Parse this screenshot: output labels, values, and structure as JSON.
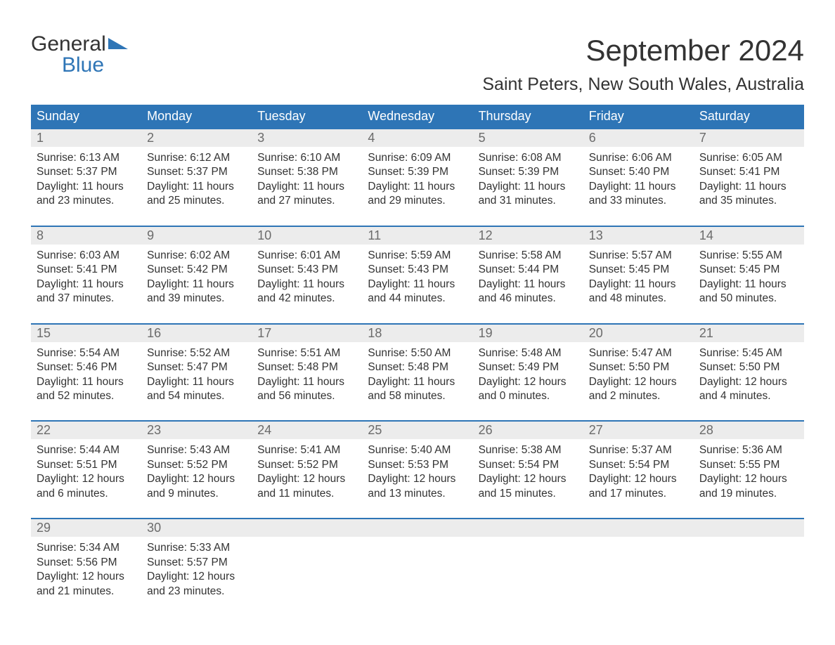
{
  "brand": {
    "line1": "General",
    "line2": "Blue",
    "text_color": "#333333",
    "accent_color": "#2e75b6"
  },
  "header": {
    "title": "September 2024",
    "location": "Saint Peters, New South Wales, Australia"
  },
  "calendar": {
    "type": "table",
    "columns": [
      "Sunday",
      "Monday",
      "Tuesday",
      "Wednesday",
      "Thursday",
      "Friday",
      "Saturday"
    ],
    "header_bg": "#2e75b6",
    "header_fg": "#ffffff",
    "row_accent": "#2e75b6",
    "daynum_bg": "#ececec",
    "background_color": "#ffffff",
    "text_color": "#333333",
    "daynum_color": "#6b6b6b",
    "body_fontsize": 15.5,
    "header_fontsize": 18,
    "weeks": [
      [
        {
          "n": "1",
          "sunrise": "6:13 AM",
          "sunset": "5:37 PM",
          "dl": "11 hours and 23 minutes."
        },
        {
          "n": "2",
          "sunrise": "6:12 AM",
          "sunset": "5:37 PM",
          "dl": "11 hours and 25 minutes."
        },
        {
          "n": "3",
          "sunrise": "6:10 AM",
          "sunset": "5:38 PM",
          "dl": "11 hours and 27 minutes."
        },
        {
          "n": "4",
          "sunrise": "6:09 AM",
          "sunset": "5:39 PM",
          "dl": "11 hours and 29 minutes."
        },
        {
          "n": "5",
          "sunrise": "6:08 AM",
          "sunset": "5:39 PM",
          "dl": "11 hours and 31 minutes."
        },
        {
          "n": "6",
          "sunrise": "6:06 AM",
          "sunset": "5:40 PM",
          "dl": "11 hours and 33 minutes."
        },
        {
          "n": "7",
          "sunrise": "6:05 AM",
          "sunset": "5:41 PM",
          "dl": "11 hours and 35 minutes."
        }
      ],
      [
        {
          "n": "8",
          "sunrise": "6:03 AM",
          "sunset": "5:41 PM",
          "dl": "11 hours and 37 minutes."
        },
        {
          "n": "9",
          "sunrise": "6:02 AM",
          "sunset": "5:42 PM",
          "dl": "11 hours and 39 minutes."
        },
        {
          "n": "10",
          "sunrise": "6:01 AM",
          "sunset": "5:43 PM",
          "dl": "11 hours and 42 minutes."
        },
        {
          "n": "11",
          "sunrise": "5:59 AM",
          "sunset": "5:43 PM",
          "dl": "11 hours and 44 minutes."
        },
        {
          "n": "12",
          "sunrise": "5:58 AM",
          "sunset": "5:44 PM",
          "dl": "11 hours and 46 minutes."
        },
        {
          "n": "13",
          "sunrise": "5:57 AM",
          "sunset": "5:45 PM",
          "dl": "11 hours and 48 minutes."
        },
        {
          "n": "14",
          "sunrise": "5:55 AM",
          "sunset": "5:45 PM",
          "dl": "11 hours and 50 minutes."
        }
      ],
      [
        {
          "n": "15",
          "sunrise": "5:54 AM",
          "sunset": "5:46 PM",
          "dl": "11 hours and 52 minutes."
        },
        {
          "n": "16",
          "sunrise": "5:52 AM",
          "sunset": "5:47 PM",
          "dl": "11 hours and 54 minutes."
        },
        {
          "n": "17",
          "sunrise": "5:51 AM",
          "sunset": "5:48 PM",
          "dl": "11 hours and 56 minutes."
        },
        {
          "n": "18",
          "sunrise": "5:50 AM",
          "sunset": "5:48 PM",
          "dl": "11 hours and 58 minutes."
        },
        {
          "n": "19",
          "sunrise": "5:48 AM",
          "sunset": "5:49 PM",
          "dl": "12 hours and 0 minutes."
        },
        {
          "n": "20",
          "sunrise": "5:47 AM",
          "sunset": "5:50 PM",
          "dl": "12 hours and 2 minutes."
        },
        {
          "n": "21",
          "sunrise": "5:45 AM",
          "sunset": "5:50 PM",
          "dl": "12 hours and 4 minutes."
        }
      ],
      [
        {
          "n": "22",
          "sunrise": "5:44 AM",
          "sunset": "5:51 PM",
          "dl": "12 hours and 6 minutes."
        },
        {
          "n": "23",
          "sunrise": "5:43 AM",
          "sunset": "5:52 PM",
          "dl": "12 hours and 9 minutes."
        },
        {
          "n": "24",
          "sunrise": "5:41 AM",
          "sunset": "5:52 PM",
          "dl": "12 hours and 11 minutes."
        },
        {
          "n": "25",
          "sunrise": "5:40 AM",
          "sunset": "5:53 PM",
          "dl": "12 hours and 13 minutes."
        },
        {
          "n": "26",
          "sunrise": "5:38 AM",
          "sunset": "5:54 PM",
          "dl": "12 hours and 15 minutes."
        },
        {
          "n": "27",
          "sunrise": "5:37 AM",
          "sunset": "5:54 PM",
          "dl": "12 hours and 17 minutes."
        },
        {
          "n": "28",
          "sunrise": "5:36 AM",
          "sunset": "5:55 PM",
          "dl": "12 hours and 19 minutes."
        }
      ],
      [
        {
          "n": "29",
          "sunrise": "5:34 AM",
          "sunset": "5:56 PM",
          "dl": "12 hours and 21 minutes."
        },
        {
          "n": "30",
          "sunrise": "5:33 AM",
          "sunset": "5:57 PM",
          "dl": "12 hours and 23 minutes."
        },
        null,
        null,
        null,
        null,
        null
      ]
    ],
    "labels": {
      "sunrise": "Sunrise: ",
      "sunset": "Sunset: ",
      "daylight": "Daylight: "
    }
  }
}
